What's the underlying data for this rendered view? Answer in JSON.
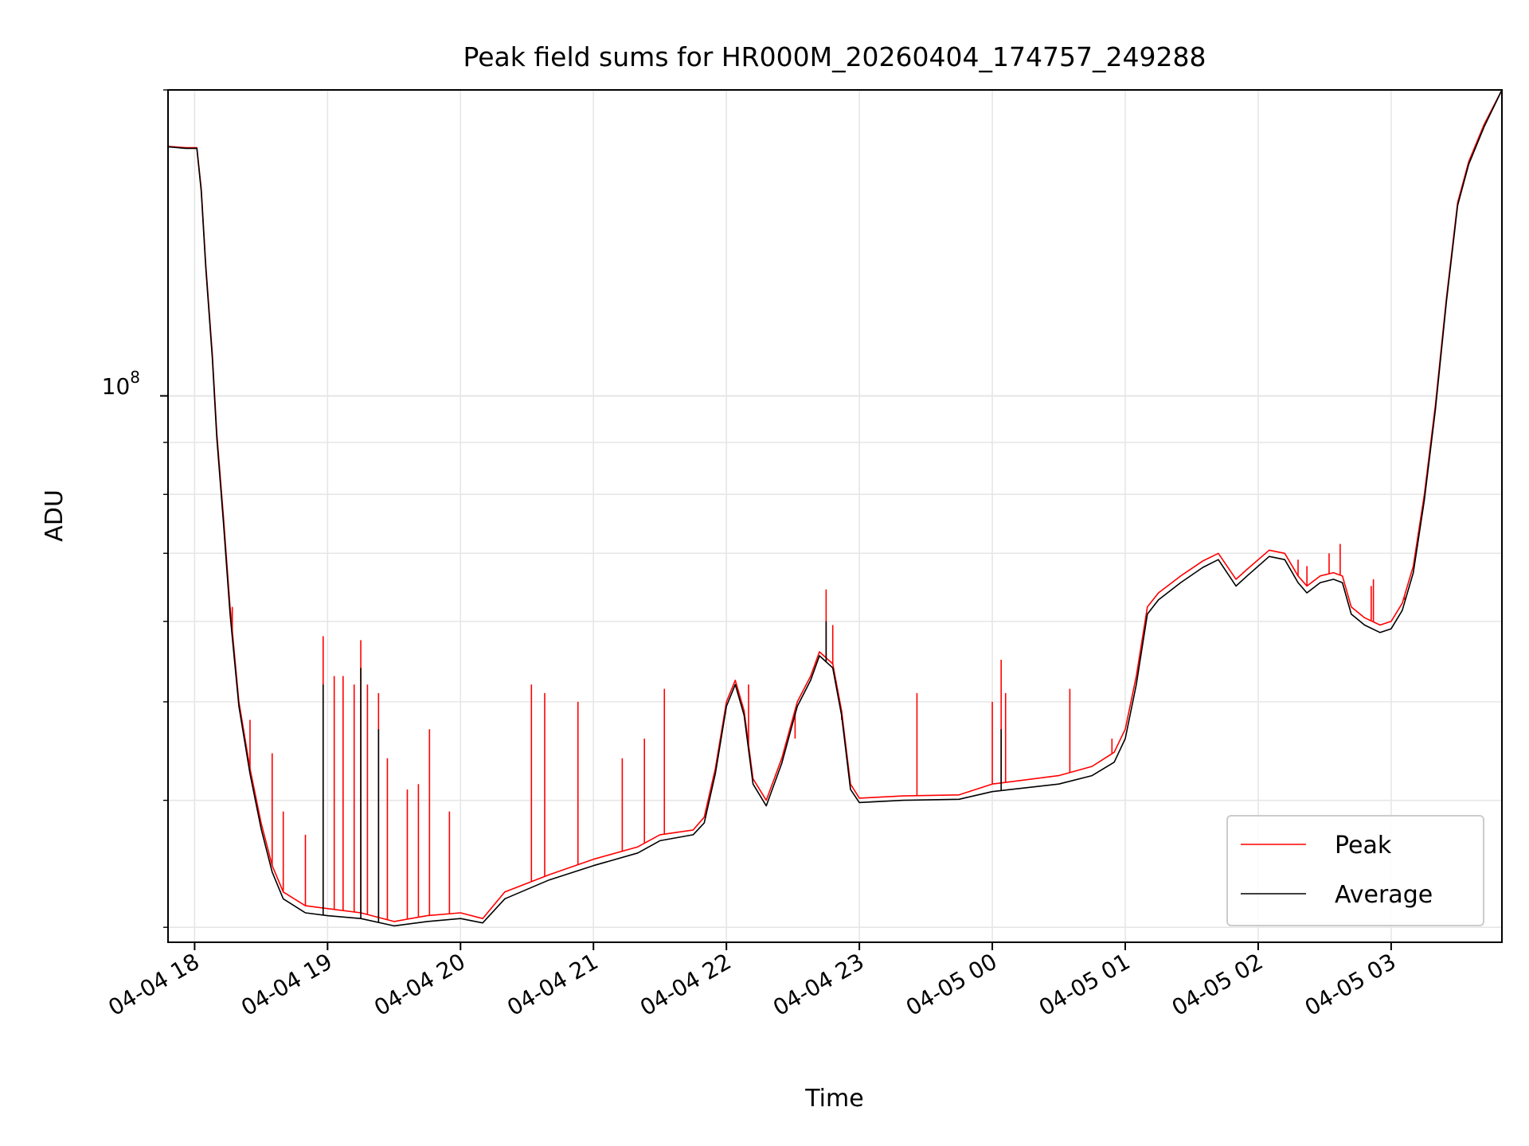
{
  "chart_data": {
    "type": "line",
    "title": "Peak field sums for HR000M_20260404_174757_249288",
    "xlabel": "Time",
    "ylabel": "ADU",
    "yscale": "log",
    "x_range": [
      "2026-04-04 17:48",
      "2026-04-05 03:50"
    ],
    "ylim": [
      29000000,
      200000000
    ],
    "x_ticks": [
      "2026-04-04 18:00",
      "2026-04-04 19:00",
      "2026-04-04 20:00",
      "2026-04-04 21:00",
      "2026-04-04 22:00",
      "2026-04-04 23:00",
      "2026-04-05 00:00",
      "2026-04-05 01:00",
      "2026-04-05 02:00",
      "2026-04-05 03:00"
    ],
    "x_tick_labels": [
      "04-04 18",
      "04-04 19",
      "04-04 20",
      "04-04 21",
      "04-04 22",
      "04-04 23",
      "04-05 00",
      "04-05 01",
      "04-05 02",
      "04-05 03"
    ],
    "y_major_tick_value": 100000000,
    "y_tick_base": "10",
    "y_tick_exp": "8",
    "grid": true,
    "legend": "lower-right",
    "colors": {
      "peak": "#ff0000",
      "average": "#000000",
      "grid": "#e6e6e6"
    },
    "series": [
      {
        "name": "Peak",
        "color": "#ff0000",
        "points": [
          [
            "2026-04-04 17:48",
            176000000
          ],
          [
            "2026-04-04 17:56",
            175500000
          ],
          [
            "2026-04-04 18:01",
            175500000
          ],
          [
            "2026-04-04 18:03",
            160000000
          ],
          [
            "2026-04-04 18:05",
            135000000
          ],
          [
            "2026-04-04 18:08",
            110000000
          ],
          [
            "2026-04-04 18:10",
            92000000
          ],
          [
            "2026-04-04 18:13",
            76000000
          ],
          [
            "2026-04-04 18:16",
            62000000
          ],
          [
            "2026-04-04 18:20",
            50000000
          ],
          [
            "2026-04-04 18:25",
            43000000
          ],
          [
            "2026-04-04 18:30",
            38000000
          ],
          [
            "2026-04-04 18:35",
            34500000
          ],
          [
            "2026-04-04 18:40",
            32500000
          ],
          [
            "2026-04-04 18:50",
            31500000
          ],
          [
            "2026-04-04 19:00",
            31300000
          ],
          [
            "2026-04-04 19:15",
            31000000
          ],
          [
            "2026-04-04 19:30",
            30400000
          ],
          [
            "2026-04-04 19:45",
            30800000
          ],
          [
            "2026-04-04 20:00",
            31000000
          ],
          [
            "2026-04-04 20:10",
            30600000
          ],
          [
            "2026-04-04 20:20",
            32500000
          ],
          [
            "2026-04-04 20:40",
            33800000
          ],
          [
            "2026-04-04 21:00",
            35000000
          ],
          [
            "2026-04-04 21:20",
            36000000
          ],
          [
            "2026-04-04 21:30",
            37000000
          ],
          [
            "2026-04-04 21:45",
            37400000
          ],
          [
            "2026-04-04 21:50",
            38500000
          ],
          [
            "2026-04-04 21:55",
            43000000
          ],
          [
            "2026-04-04 22:00",
            50000000
          ],
          [
            "2026-04-04 22:04",
            52500000
          ],
          [
            "2026-04-04 22:08",
            49000000
          ],
          [
            "2026-04-04 22:12",
            42000000
          ],
          [
            "2026-04-04 22:18",
            40000000
          ],
          [
            "2026-04-04 22:25",
            44000000
          ],
          [
            "2026-04-04 22:32",
            50000000
          ],
          [
            "2026-04-04 22:38",
            53000000
          ],
          [
            "2026-04-04 22:42",
            56000000
          ],
          [
            "2026-04-04 22:48",
            54500000
          ],
          [
            "2026-04-04 22:52",
            49000000
          ],
          [
            "2026-04-04 22:56",
            41500000
          ],
          [
            "2026-04-04 23:00",
            40200000
          ],
          [
            "2026-04-04 23:20",
            40400000
          ],
          [
            "2026-04-04 23:45",
            40500000
          ],
          [
            "2026-04-05 00:00",
            41500000
          ],
          [
            "2026-04-05 00:30",
            42300000
          ],
          [
            "2026-04-05 00:45",
            43200000
          ],
          [
            "2026-04-05 00:55",
            44600000
          ],
          [
            "2026-04-05 01:00",
            47000000
          ],
          [
            "2026-04-05 01:05",
            53000000
          ],
          [
            "2026-04-05 01:10",
            62000000
          ],
          [
            "2026-04-05 01:15",
            64000000
          ],
          [
            "2026-04-05 01:25",
            66500000
          ],
          [
            "2026-04-05 01:35",
            68800000
          ],
          [
            "2026-04-05 01:42",
            70000000
          ],
          [
            "2026-04-05 01:50",
            66000000
          ],
          [
            "2026-04-05 01:55",
            67500000
          ],
          [
            "2026-04-05 02:05",
            70500000
          ],
          [
            "2026-04-05 02:12",
            70000000
          ],
          [
            "2026-04-05 02:18",
            66500000
          ],
          [
            "2026-04-05 02:22",
            65000000
          ],
          [
            "2026-04-05 02:28",
            66500000
          ],
          [
            "2026-04-05 02:34",
            67000000
          ],
          [
            "2026-04-05 02:38",
            66500000
          ],
          [
            "2026-04-05 02:42",
            62000000
          ],
          [
            "2026-04-05 02:48",
            60500000
          ],
          [
            "2026-04-05 02:55",
            59500000
          ],
          [
            "2026-04-05 03:00",
            60000000
          ],
          [
            "2026-04-05 03:05",
            62500000
          ],
          [
            "2026-04-05 03:10",
            68000000
          ],
          [
            "2026-04-05 03:15",
            80000000
          ],
          [
            "2026-04-05 03:20",
            98000000
          ],
          [
            "2026-04-05 03:25",
            125000000
          ],
          [
            "2026-04-05 03:30",
            155000000
          ],
          [
            "2026-04-05 03:35",
            170000000
          ],
          [
            "2026-04-05 03:42",
            185000000
          ],
          [
            "2026-04-05 03:50",
            200000000
          ]
        ],
        "spikes": [
          [
            "2026-04-04 18:17",
            62000000
          ],
          [
            "2026-04-04 18:25",
            48000000
          ],
          [
            "2026-04-04 18:35",
            44500000
          ],
          [
            "2026-04-04 18:40",
            39000000
          ],
          [
            "2026-04-04 18:50",
            37000000
          ],
          [
            "2026-04-04 18:58",
            58000000
          ],
          [
            "2026-04-04 19:03",
            53000000
          ],
          [
            "2026-04-04 19:07",
            53000000
          ],
          [
            "2026-04-04 19:12",
            52000000
          ],
          [
            "2026-04-04 19:15",
            57500000
          ],
          [
            "2026-04-04 19:18",
            52000000
          ],
          [
            "2026-04-04 19:23",
            51000000
          ],
          [
            "2026-04-04 19:27",
            44000000
          ],
          [
            "2026-04-04 19:36",
            41000000
          ],
          [
            "2026-04-04 19:41",
            41500000
          ],
          [
            "2026-04-04 19:46",
            47000000
          ],
          [
            "2026-04-04 19:55",
            39000000
          ],
          [
            "2026-04-04 20:32",
            52000000
          ],
          [
            "2026-04-04 20:38",
            51000000
          ],
          [
            "2026-04-04 20:53",
            50000000
          ],
          [
            "2026-04-04 21:13",
            44000000
          ],
          [
            "2026-04-04 21:23",
            46000000
          ],
          [
            "2026-04-04 21:32",
            51500000
          ],
          [
            "2026-04-04 22:10",
            52000000
          ],
          [
            "2026-04-04 22:31",
            46000000
          ],
          [
            "2026-04-04 22:45",
            64500000
          ],
          [
            "2026-04-04 22:48",
            59500000
          ],
          [
            "2026-04-04 22:52",
            48000000
          ],
          [
            "2026-04-04 23:26",
            51000000
          ],
          [
            "2026-04-05 00:00",
            50000000
          ],
          [
            "2026-04-05 00:04",
            55000000
          ],
          [
            "2026-04-05 00:06",
            51000000
          ],
          [
            "2026-04-05 00:35",
            51500000
          ],
          [
            "2026-04-05 00:54",
            46000000
          ],
          [
            "2026-04-05 02:18",
            69000000
          ],
          [
            "2026-04-05 02:22",
            68000000
          ],
          [
            "2026-04-05 02:32",
            70000000
          ],
          [
            "2026-04-05 02:37",
            71500000
          ],
          [
            "2026-04-05 02:51",
            65000000
          ],
          [
            "2026-04-05 02:52",
            66000000
          ],
          [
            "2026-04-05 03:06",
            63000000
          ]
        ]
      },
      {
        "name": "Average",
        "color": "#000000",
        "points": [
          [
            "2026-04-04 17:48",
            175800000
          ],
          [
            "2026-04-04 17:56",
            175200000
          ],
          [
            "2026-04-04 18:01",
            175200000
          ],
          [
            "2026-04-04 18:03",
            159000000
          ],
          [
            "2026-04-04 18:05",
            134000000
          ],
          [
            "2026-04-04 18:08",
            109000000
          ],
          [
            "2026-04-04 18:10",
            91000000
          ],
          [
            "2026-04-04 18:13",
            75000000
          ],
          [
            "2026-04-04 18:16",
            61000000
          ],
          [
            "2026-04-04 18:20",
            49500000
          ],
          [
            "2026-04-04 18:25",
            42500000
          ],
          [
            "2026-04-04 18:30",
            37500000
          ],
          [
            "2026-04-04 18:35",
            34000000
          ],
          [
            "2026-04-04 18:40",
            32000000
          ],
          [
            "2026-04-04 18:50",
            31000000
          ],
          [
            "2026-04-04 19:00",
            30800000
          ],
          [
            "2026-04-04 19:15",
            30600000
          ],
          [
            "2026-04-04 19:30",
            30100000
          ],
          [
            "2026-04-04 19:45",
            30400000
          ],
          [
            "2026-04-04 20:00",
            30600000
          ],
          [
            "2026-04-04 20:10",
            30300000
          ],
          [
            "2026-04-04 20:20",
            32000000
          ],
          [
            "2026-04-04 20:40",
            33400000
          ],
          [
            "2026-04-04 21:00",
            34500000
          ],
          [
            "2026-04-04 21:20",
            35500000
          ],
          [
            "2026-04-04 21:30",
            36500000
          ],
          [
            "2026-04-04 21:45",
            37000000
          ],
          [
            "2026-04-04 21:50",
            38000000
          ],
          [
            "2026-04-04 21:55",
            42500000
          ],
          [
            "2026-04-04 22:00",
            49500000
          ],
          [
            "2026-04-04 22:04",
            52000000
          ],
          [
            "2026-04-04 22:08",
            48500000
          ],
          [
            "2026-04-04 22:12",
            41500000
          ],
          [
            "2026-04-04 22:18",
            39500000
          ],
          [
            "2026-04-04 22:25",
            43500000
          ],
          [
            "2026-04-04 22:32",
            49500000
          ],
          [
            "2026-04-04 22:38",
            52500000
          ],
          [
            "2026-04-04 22:42",
            55500000
          ],
          [
            "2026-04-04 22:48",
            54000000
          ],
          [
            "2026-04-04 22:52",
            48500000
          ],
          [
            "2026-04-04 22:56",
            41000000
          ],
          [
            "2026-04-04 23:00",
            39800000
          ],
          [
            "2026-04-04 23:20",
            40000000
          ],
          [
            "2026-04-04 23:45",
            40100000
          ],
          [
            "2026-04-05 00:00",
            40800000
          ],
          [
            "2026-04-05 00:30",
            41500000
          ],
          [
            "2026-04-05 00:45",
            42300000
          ],
          [
            "2026-04-05 00:55",
            43600000
          ],
          [
            "2026-04-05 01:00",
            46000000
          ],
          [
            "2026-04-05 01:05",
            52000000
          ],
          [
            "2026-04-05 01:10",
            61000000
          ],
          [
            "2026-04-05 01:15",
            63000000
          ],
          [
            "2026-04-05 01:25",
            65500000
          ],
          [
            "2026-04-05 01:35",
            67800000
          ],
          [
            "2026-04-05 01:42",
            69000000
          ],
          [
            "2026-04-05 01:50",
            65000000
          ],
          [
            "2026-04-05 01:55",
            66500000
          ],
          [
            "2026-04-05 02:05",
            69500000
          ],
          [
            "2026-04-05 02:12",
            69000000
          ],
          [
            "2026-04-05 02:18",
            65500000
          ],
          [
            "2026-04-05 02:22",
            64000000
          ],
          [
            "2026-04-05 02:28",
            65500000
          ],
          [
            "2026-04-05 02:34",
            66000000
          ],
          [
            "2026-04-05 02:38",
            65500000
          ],
          [
            "2026-04-05 02:42",
            61000000
          ],
          [
            "2026-04-05 02:48",
            59500000
          ],
          [
            "2026-04-05 02:55",
            58500000
          ],
          [
            "2026-04-05 03:00",
            59000000
          ],
          [
            "2026-04-05 03:05",
            61500000
          ],
          [
            "2026-04-05 03:10",
            67000000
          ],
          [
            "2026-04-05 03:15",
            79000000
          ],
          [
            "2026-04-05 03:20",
            97000000
          ],
          [
            "2026-04-05 03:25",
            124000000
          ],
          [
            "2026-04-05 03:30",
            154000000
          ],
          [
            "2026-04-05 03:35",
            169000000
          ],
          [
            "2026-04-05 03:42",
            184000000
          ],
          [
            "2026-04-05 03:50",
            200000000
          ]
        ],
        "spikes": [
          [
            "2026-04-04 18:58",
            52000000
          ],
          [
            "2026-04-04 19:15",
            54000000
          ],
          [
            "2026-04-04 19:23",
            47000000
          ],
          [
            "2026-04-04 22:45",
            60000000
          ],
          [
            "2026-04-05 00:04",
            47000000
          ]
        ]
      }
    ]
  }
}
